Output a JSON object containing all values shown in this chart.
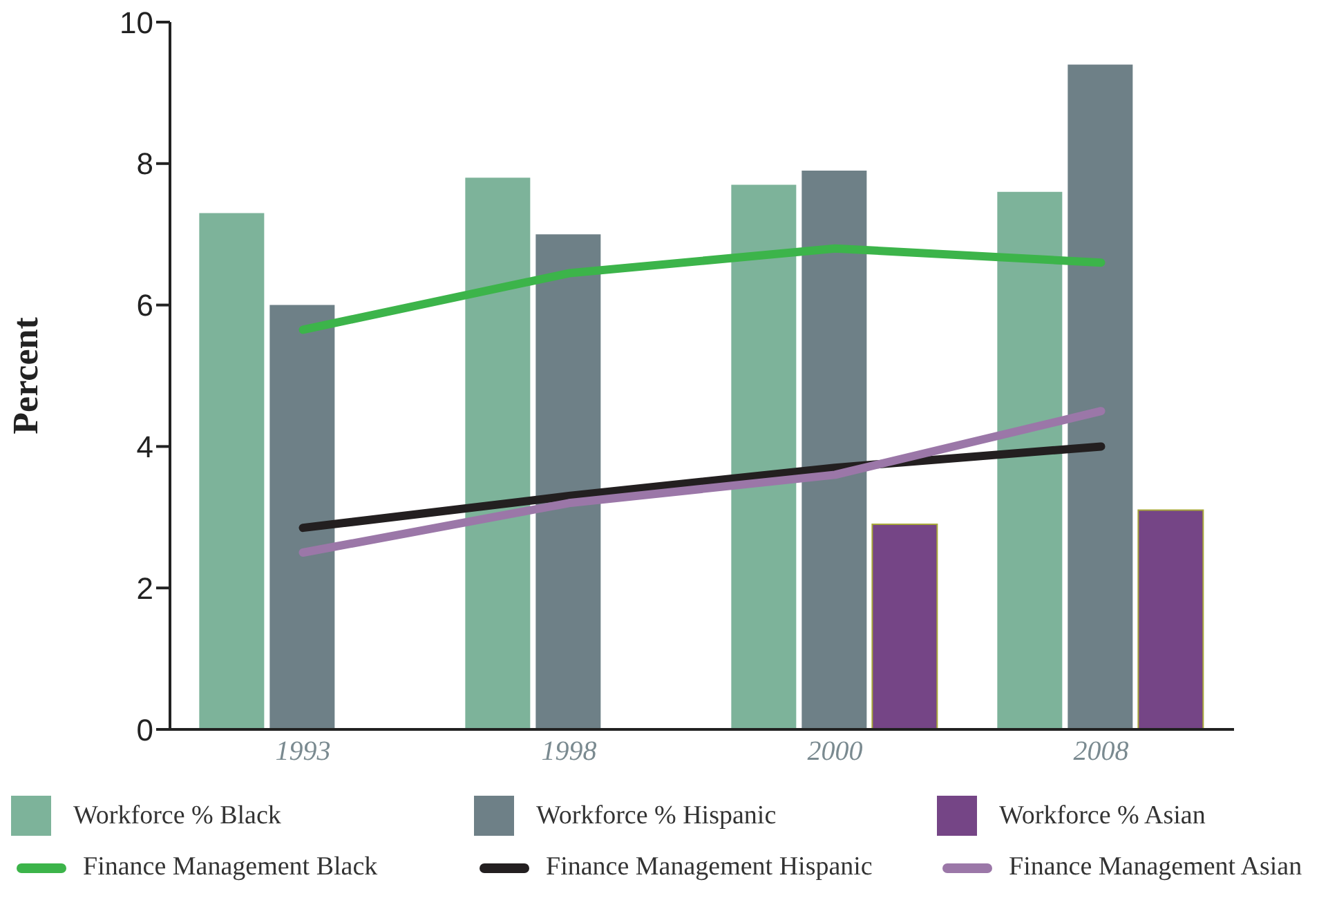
{
  "chart_data": {
    "type": "bar",
    "ylabel": "Percent",
    "categories": [
      "1993",
      "1998",
      "2000",
      "2008"
    ],
    "ylim": [
      0,
      10
    ],
    "yticks": [
      0,
      2,
      4,
      6,
      8,
      10
    ],
    "grid": false,
    "legend": "bottom",
    "marker": "none",
    "series": [
      {
        "name": "Workforce % Black",
        "color": "#7db39a",
        "values": [
          7.3,
          7.8,
          7.7,
          7.6
        ]
      },
      {
        "name": "Workforce % Hispanic",
        "color": "#6e8087",
        "values": [
          6.0,
          7.0,
          7.9,
          9.4
        ]
      },
      {
        "name": "Workforce % Asian",
        "color": "#754586",
        "values": [
          null,
          null,
          2.9,
          3.1
        ]
      },
      {
        "name": "Finance Management Black",
        "type": "line",
        "color": "#3cb44a",
        "values": [
          5.65,
          6.45,
          6.8,
          6.6
        ]
      },
      {
        "name": "Finance Management Hispanic",
        "type": "line",
        "color": "#231f20",
        "values": [
          2.85,
          3.3,
          3.7,
          4.0
        ]
      },
      {
        "name": "Finance Management Asian",
        "type": "line",
        "color": "#9b77a8",
        "values": [
          2.5,
          3.2,
          3.6,
          4.5
        ]
      }
    ]
  }
}
